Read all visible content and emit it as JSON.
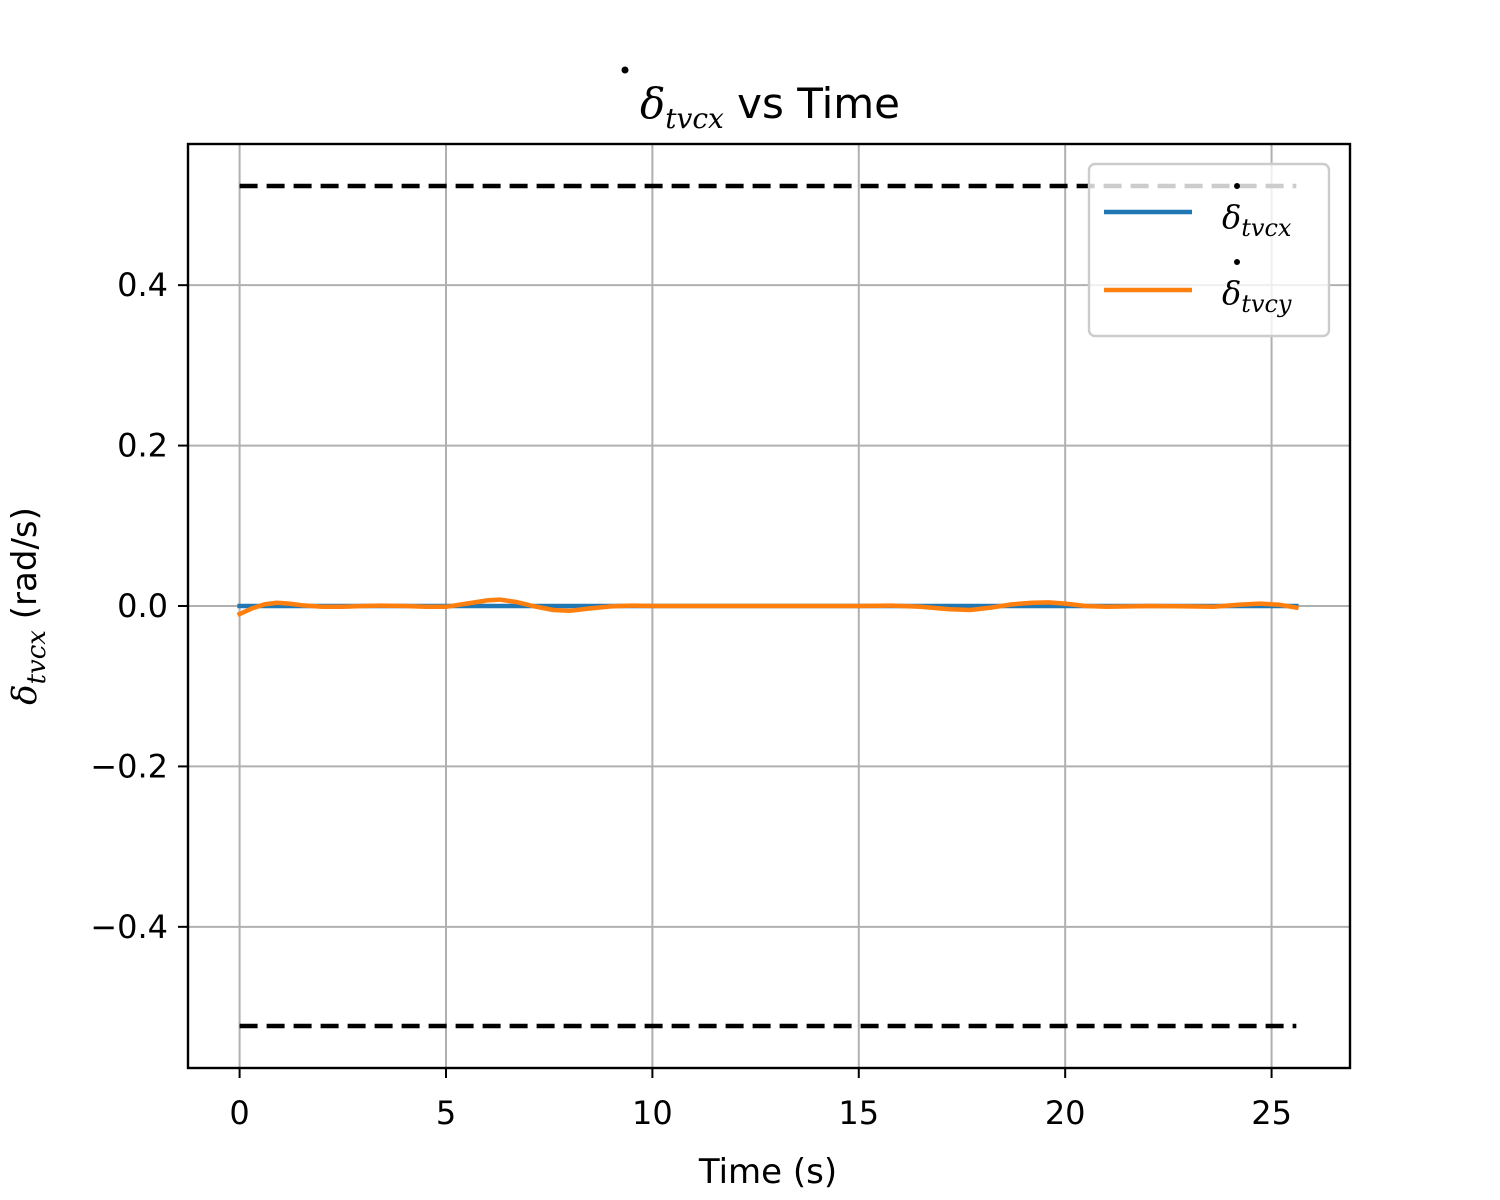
{
  "chart_data": {
    "type": "line",
    "title": {
      "symbol": "δ",
      "subscript": "tvcx",
      "rest": " vs Time"
    },
    "xlabel": "Time (s)",
    "ylabel": {
      "symbol": "δ",
      "subscript": "tvcx",
      "rest": " (rad/s)"
    },
    "xlim": [
      -1.25,
      26.9
    ],
    "ylim": [
      -0.576,
      0.576
    ],
    "xticks": [
      0,
      5,
      10,
      15,
      20,
      25
    ],
    "xtick_labels": [
      "0",
      "5",
      "10",
      "15",
      "20",
      "25"
    ],
    "yticks": [
      -0.4,
      -0.2,
      0.0,
      0.2,
      0.4
    ],
    "ytick_labels": [
      "−0.4",
      "−0.2",
      "0.0",
      "0.2",
      "0.4"
    ],
    "grid": true,
    "legend": "top-right",
    "limits": [
      {
        "y": 0.5236,
        "x": [
          0,
          25.6
        ],
        "style": "dashed",
        "color": "#000000"
      },
      {
        "y": -0.5236,
        "x": [
          0,
          25.6
        ],
        "style": "dashed",
        "color": "#000000"
      }
    ],
    "series": [
      {
        "name": {
          "symbol": "δ",
          "subscript": "tvcx"
        },
        "color": "#1f77b4",
        "x": [
          0,
          25.6
        ],
        "values": [
          0.0,
          0.0
        ]
      },
      {
        "name": {
          "symbol": "δ",
          "subscript": "tvcy"
        },
        "color": "#ff7f0e",
        "x": [
          0,
          0.3,
          0.6,
          0.9,
          1.2,
          1.5,
          2.0,
          2.5,
          3.0,
          3.4,
          4.0,
          4.5,
          5.0,
          5.5,
          6.0,
          6.3,
          6.7,
          7.1,
          7.6,
          8.0,
          8.5,
          9.0,
          9.5,
          10.0,
          11.0,
          12.0,
          13.0,
          14.0,
          15.0,
          15.8,
          16.5,
          17.2,
          17.7,
          18.2,
          18.7,
          19.2,
          19.6,
          20.0,
          20.5,
          21.0,
          22.0,
          23.0,
          23.6,
          24.2,
          24.7,
          25.2,
          25.6
        ],
        "values": [
          -0.01,
          -0.003,
          0.002,
          0.004,
          0.003,
          0.001,
          -0.001,
          -0.001,
          0.0,
          0.0005,
          0.0,
          -0.001,
          -0.001,
          0.003,
          0.007,
          0.008,
          0.005,
          0.0,
          -0.005,
          -0.006,
          -0.003,
          -0.0005,
          0.0005,
          0.0,
          0.0,
          0.0,
          0.0,
          0.0,
          0.0,
          0.0005,
          -0.001,
          -0.004,
          -0.005,
          -0.002,
          0.002,
          0.004,
          0.0045,
          0.003,
          0.0,
          -0.001,
          0.0,
          -0.0005,
          -0.001,
          0.0015,
          0.003,
          0.0015,
          -0.002
        ]
      }
    ]
  }
}
